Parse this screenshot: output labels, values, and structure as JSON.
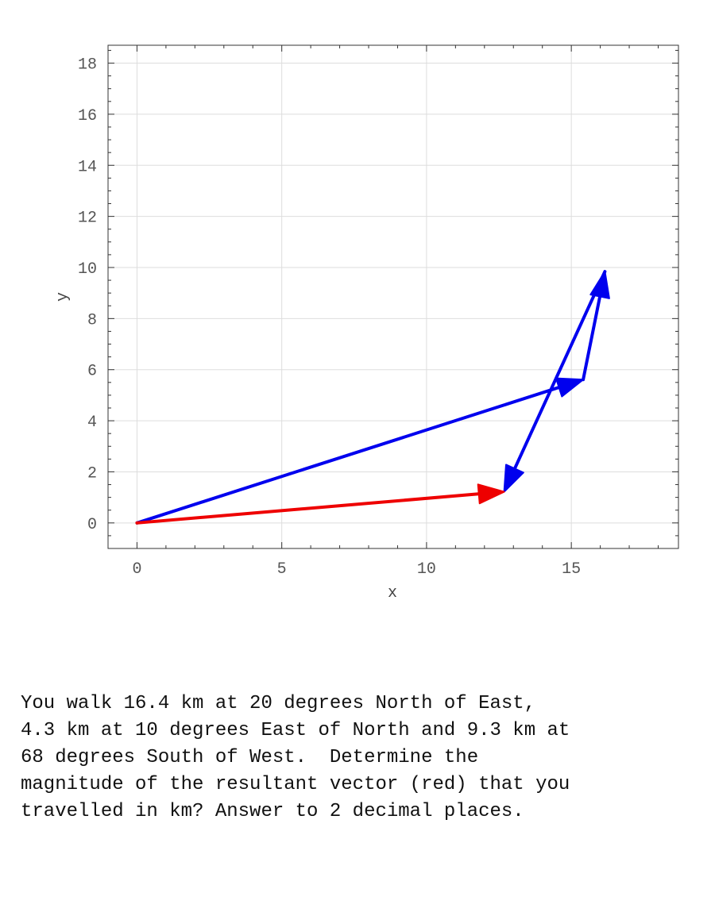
{
  "chart_data": {
    "type": "vector-diagram",
    "xlabel": "x",
    "ylabel": "y",
    "xlim": [
      -1,
      18.7
    ],
    "ylim": [
      -1,
      18.7
    ],
    "grid": true,
    "xticks": [
      0,
      5,
      10,
      15
    ],
    "yticks": [
      0,
      2,
      4,
      6,
      8,
      10,
      12,
      14,
      16,
      18
    ],
    "vectors": [
      {
        "from": [
          0,
          0
        ],
        "to": [
          15.41,
          5.61
        ],
        "color": "#0000ee"
      },
      {
        "from": [
          15.41,
          5.61
        ],
        "to": [
          16.16,
          9.84
        ],
        "color": "#0000ee"
      },
      {
        "from": [
          16.16,
          9.84
        ],
        "to": [
          12.68,
          1.22
        ],
        "color": "#0000ee"
      },
      {
        "from": [
          0,
          0
        ],
        "to": [
          12.68,
          1.22
        ],
        "color": "#ee0000"
      }
    ]
  },
  "question": "You walk 16.4 km at 20 degrees North of East,\n4.3 km at 10 degrees East of North and 9.3 km at\n68 degrees South of West.  Determine the\nmagnitude of the resultant vector (red) that you\ntravelled in km? Answer to 2 decimal places."
}
